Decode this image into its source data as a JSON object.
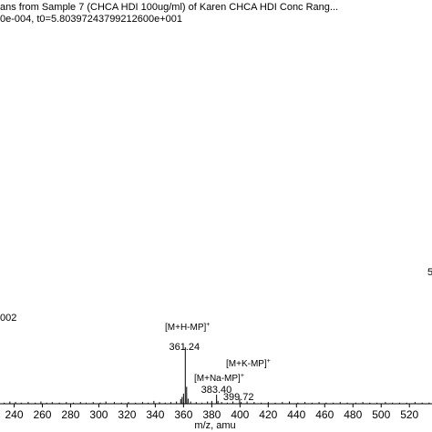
{
  "header": {
    "line1": "ans from Sample 7 (CHCA HDI 100ug/ml) of Karen CHCA HDI Conc Rang...",
    "line2": "0e-004, t0=5.80397243799212600e+001"
  },
  "side_notes": {
    "left": "002",
    "right": "5"
  },
  "chart_data": {
    "type": "bar",
    "title": "",
    "xlabel": "m/z, amu",
    "ylabel": "",
    "xlim": [
      230,
      536
    ],
    "x_ticks": [
      240,
      260,
      280,
      300,
      320,
      340,
      360,
      380,
      400,
      420,
      440,
      460,
      480,
      500,
      520
    ],
    "grid": false,
    "peaks": [
      {
        "x": 233.0,
        "h": 0.02
      },
      {
        "x": 237.0,
        "h": 0.04
      },
      {
        "x": 241.0,
        "h": 0.03
      },
      {
        "x": 245.0,
        "h": 0.02
      },
      {
        "x": 250.0,
        "h": 0.03
      },
      {
        "x": 255.0,
        "h": 0.02
      },
      {
        "x": 259.0,
        "h": 0.04
      },
      {
        "x": 263.0,
        "h": 0.02
      },
      {
        "x": 267.0,
        "h": 0.03
      },
      {
        "x": 272.0,
        "h": 0.02
      },
      {
        "x": 277.0,
        "h": 0.03
      },
      {
        "x": 282.0,
        "h": 0.02
      },
      {
        "x": 287.0,
        "h": 0.03
      },
      {
        "x": 291.0,
        "h": 0.02
      },
      {
        "x": 296.0,
        "h": 0.03
      },
      {
        "x": 301.0,
        "h": 0.02
      },
      {
        "x": 305.0,
        "h": 0.04
      },
      {
        "x": 311.0,
        "h": 0.03
      },
      {
        "x": 316.0,
        "h": 0.02
      },
      {
        "x": 321.0,
        "h": 0.03
      },
      {
        "x": 326.0,
        "h": 0.02
      },
      {
        "x": 331.0,
        "h": 0.03
      },
      {
        "x": 335.0,
        "h": 0.02
      },
      {
        "x": 339.0,
        "h": 0.05
      },
      {
        "x": 343.0,
        "h": 0.03
      },
      {
        "x": 347.0,
        "h": 0.02
      },
      {
        "x": 351.0,
        "h": 0.03
      },
      {
        "x": 355.0,
        "h": 0.04
      },
      {
        "x": 358.0,
        "h": 0.08
      },
      {
        "x": 359.0,
        "h": 0.12
      },
      {
        "x": 360.0,
        "h": 0.18
      },
      {
        "x": 361.24,
        "h": 1.0
      },
      {
        "x": 362.2,
        "h": 0.3
      },
      {
        "x": 363.2,
        "h": 0.09
      },
      {
        "x": 365.0,
        "h": 0.04
      },
      {
        "x": 369.0,
        "h": 0.03
      },
      {
        "x": 373.0,
        "h": 0.02
      },
      {
        "x": 377.0,
        "h": 0.04
      },
      {
        "x": 380.0,
        "h": 0.05
      },
      {
        "x": 383.4,
        "h": 0.16
      },
      {
        "x": 384.4,
        "h": 0.05
      },
      {
        "x": 387.0,
        "h": 0.03
      },
      {
        "x": 391.0,
        "h": 0.02
      },
      {
        "x": 395.0,
        "h": 0.04
      },
      {
        "x": 399.72,
        "h": 0.09
      },
      {
        "x": 400.8,
        "h": 0.03
      },
      {
        "x": 405.0,
        "h": 0.04
      },
      {
        "x": 410.0,
        "h": 0.03
      },
      {
        "x": 415.0,
        "h": 0.02
      },
      {
        "x": 420.0,
        "h": 0.03
      },
      {
        "x": 425.0,
        "h": 0.02
      },
      {
        "x": 430.0,
        "h": 0.03
      },
      {
        "x": 435.0,
        "h": 0.04
      },
      {
        "x": 441.0,
        "h": 0.02
      },
      {
        "x": 446.0,
        "h": 0.03
      },
      {
        "x": 451.0,
        "h": 0.02
      },
      {
        "x": 456.0,
        "h": 0.03
      },
      {
        "x": 461.0,
        "h": 0.02
      },
      {
        "x": 466.0,
        "h": 0.02
      },
      {
        "x": 471.0,
        "h": 0.03
      },
      {
        "x": 476.0,
        "h": 0.02
      },
      {
        "x": 482.0,
        "h": 0.02
      },
      {
        "x": 487.0,
        "h": 0.03
      },
      {
        "x": 492.0,
        "h": 0.02
      },
      {
        "x": 497.0,
        "h": 0.02
      },
      {
        "x": 503.0,
        "h": 0.03
      },
      {
        "x": 508.0,
        "h": 0.02
      },
      {
        "x": 513.0,
        "h": 0.02
      },
      {
        "x": 518.0,
        "h": 0.02
      },
      {
        "x": 524.0,
        "h": 0.03
      },
      {
        "x": 529.0,
        "h": 0.02
      },
      {
        "x": 534.0,
        "h": 0.02
      }
    ],
    "peak_labels": [
      {
        "x": 361.24,
        "text": "361.24"
      },
      {
        "x": 383.4,
        "text": "383.40"
      },
      {
        "x": 399.72,
        "text": "399.72"
      }
    ],
    "annotations": [
      {
        "text": "[M+H-MP]",
        "sup": "+",
        "x": 361.24
      },
      {
        "text": "[M+K-MP]",
        "sup": "+",
        "x": 399.72
      },
      {
        "text": "[M+Na-MP]",
        "sup": "+",
        "x": 383.4
      }
    ]
  }
}
